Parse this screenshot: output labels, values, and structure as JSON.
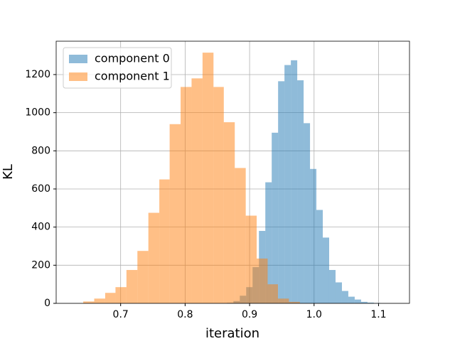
{
  "chart_data": {
    "type": "histogram",
    "xlabel": "iteration",
    "ylabel": "KL",
    "xlim": [
      0.6,
      1.148
    ],
    "ylim": [
      0,
      1375
    ],
    "xticks": [
      0.7,
      0.8,
      0.9,
      {
        "value": 1.0,
        "label": "1.0"
      },
      1.1
    ],
    "yticks": [
      0,
      200,
      400,
      600,
      800,
      1000,
      1200
    ],
    "grid": true,
    "legend": "upper left",
    "alpha": 0.5,
    "series": [
      {
        "name": "component 0",
        "color": "#1f77b4",
        "bins": [
          0.865,
          0.8749,
          0.8848,
          0.8947,
          0.9046,
          0.9145,
          0.9244,
          0.9343,
          0.9442,
          0.9541,
          0.964,
          0.9739,
          0.9838,
          0.9937,
          1.0036,
          1.0135,
          1.0234,
          1.0333,
          1.0432,
          1.0531,
          1.063,
          1.0729,
          1.0828,
          1.0927,
          1.1026
        ],
        "values": [
          3,
          12,
          40,
          85,
          190,
          380,
          635,
          895,
          1165,
          1250,
          1275,
          1170,
          945,
          705,
          490,
          345,
          175,
          110,
          65,
          35,
          20,
          8,
          4,
          2
        ]
      },
      {
        "name": "component 1",
        "color": "#ff7f0e",
        "bins": [
          0.642,
          0.659,
          0.676,
          0.692,
          0.709,
          0.726,
          0.743,
          0.76,
          0.776,
          0.793,
          0.81,
          0.827,
          0.844,
          0.86,
          0.877,
          0.894,
          0.911,
          0.928,
          0.944,
          0.961,
          0.978
        ],
        "values": [
          10,
          25,
          55,
          85,
          175,
          275,
          475,
          650,
          940,
          1135,
          1180,
          1315,
          1135,
          950,
          710,
          460,
          235,
          100,
          25,
          8
        ]
      }
    ]
  }
}
